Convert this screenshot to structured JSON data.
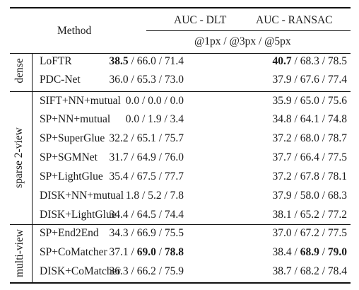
{
  "header": {
    "method": "Method",
    "auc_dlt": "AUC - DLT",
    "auc_ransac": "AUC - RANSAC",
    "thresholds": "@1px / @3px / @5px"
  },
  "groups": [
    {
      "label": "dense",
      "rows": [
        {
          "method": "LoFTR",
          "dlt": [
            "38.5",
            "66.0",
            "71.4"
          ],
          "ransac": [
            "40.7",
            "68.3",
            "78.5"
          ],
          "dlt_bold": [
            true,
            false,
            false
          ],
          "ransac_bold": [
            true,
            false,
            false
          ]
        },
        {
          "method": "PDC-Net",
          "dlt": [
            "36.0",
            "65.3",
            "73.0"
          ],
          "ransac": [
            "37.9",
            "67.6",
            "77.4"
          ],
          "dlt_bold": [
            false,
            false,
            false
          ],
          "ransac_bold": [
            false,
            false,
            false
          ]
        }
      ]
    },
    {
      "label": "sparse 2-view",
      "rows": [
        {
          "method": "SIFT+NN+mutual",
          "dlt": [
            "0.0",
            "0.0",
            "0.0"
          ],
          "ransac": [
            "35.9",
            "65.0",
            "75.6"
          ],
          "dlt_bold": [
            false,
            false,
            false
          ],
          "ransac_bold": [
            false,
            false,
            false
          ]
        },
        {
          "method": "SP+NN+mutual",
          "dlt": [
            "0.0",
            "1.9",
            "3.4"
          ],
          "ransac": [
            "34.8",
            "64.1",
            "74.8"
          ],
          "dlt_bold": [
            false,
            false,
            false
          ],
          "ransac_bold": [
            false,
            false,
            false
          ]
        },
        {
          "method": "SP+SuperGlue",
          "dlt": [
            "32.2",
            "65.1",
            "75.7"
          ],
          "ransac": [
            "37.2",
            "68.0",
            "78.7"
          ],
          "dlt_bold": [
            false,
            false,
            false
          ],
          "ransac_bold": [
            false,
            false,
            false
          ]
        },
        {
          "method": "SP+SGMNet",
          "dlt": [
            "31.7",
            "64.9",
            "76.0"
          ],
          "ransac": [
            "37.7",
            "66.4",
            "77.5"
          ],
          "dlt_bold": [
            false,
            false,
            false
          ],
          "ransac_bold": [
            false,
            false,
            false
          ]
        },
        {
          "method": "SP+LightGlue",
          "dlt": [
            "35.4",
            "67.5",
            "77.7"
          ],
          "ransac": [
            "37.2",
            "67.8",
            "78.1"
          ],
          "dlt_bold": [
            false,
            false,
            false
          ],
          "ransac_bold": [
            false,
            false,
            false
          ]
        },
        {
          "method": "DISK+NN+mutual",
          "dlt": [
            "1.8",
            "5.2",
            "7.8"
          ],
          "ransac": [
            "37.9",
            "58.0",
            "68.3"
          ],
          "dlt_bold": [
            false,
            false,
            false
          ],
          "ransac_bold": [
            false,
            false,
            false
          ]
        },
        {
          "method": "DISK+LightGlue",
          "dlt": [
            "34.4",
            "64.5",
            "74.4"
          ],
          "ransac": [
            "38.1",
            "65.2",
            "77.2"
          ],
          "dlt_bold": [
            false,
            false,
            false
          ],
          "ransac_bold": [
            false,
            false,
            false
          ]
        }
      ]
    },
    {
      "label": "multi-view",
      "rows": [
        {
          "method": "SP+End2End",
          "dlt": [
            "34.3",
            "66.9",
            "75.5"
          ],
          "ransac": [
            "37.0",
            "67.2",
            "77.5"
          ],
          "dlt_bold": [
            false,
            false,
            false
          ],
          "ransac_bold": [
            false,
            false,
            false
          ]
        },
        {
          "method": "SP+CoMatcher",
          "dlt": [
            "37.1",
            "69.0",
            "78.8"
          ],
          "ransac": [
            "38.4",
            "68.9",
            "79.0"
          ],
          "dlt_bold": [
            false,
            true,
            true
          ],
          "ransac_bold": [
            false,
            true,
            true
          ]
        },
        {
          "method": "DISK+CoMatcher",
          "dlt": [
            "36.3",
            "66.2",
            "75.9"
          ],
          "ransac": [
            "38.7",
            "68.2",
            "78.4"
          ],
          "dlt_bold": [
            false,
            false,
            false
          ],
          "ransac_bold": [
            false,
            false,
            false
          ]
        }
      ]
    }
  ]
}
